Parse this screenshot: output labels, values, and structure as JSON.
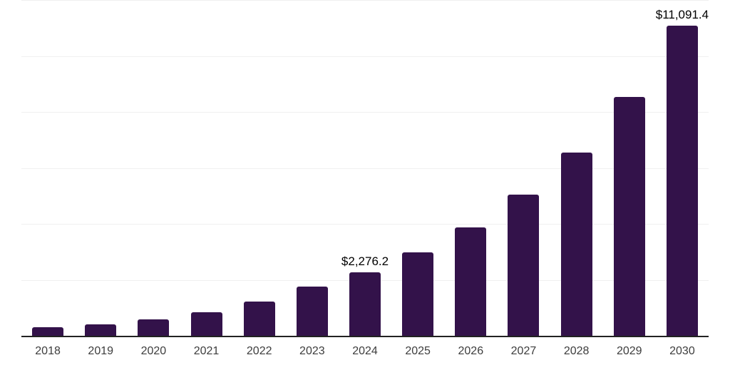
{
  "chart_data": {
    "type": "bar",
    "title": "",
    "xlabel": "",
    "ylabel": "",
    "categories": [
      "2018",
      "2019",
      "2020",
      "2021",
      "2022",
      "2023",
      "2024",
      "2025",
      "2026",
      "2027",
      "2028",
      "2029",
      "2030"
    ],
    "values": [
      295,
      420,
      585,
      850,
      1220,
      1760,
      2276.2,
      2970,
      3875,
      5055,
      6555,
      8530,
      11091.4
    ],
    "ylim": [
      0,
      12000
    ],
    "grid_step": 2000,
    "grid": true,
    "legend": false,
    "annotations": [
      {
        "category": "2024",
        "text": "$2,276.2"
      },
      {
        "category": "2030",
        "text": "$11,091.4"
      }
    ],
    "colors": {
      "bar": "#33124A",
      "gridline": "#f0f0f0",
      "axis_line": "#222222",
      "tick_label": "#3d3d3d",
      "data_label": "#000000",
      "background": "#ffffff"
    }
  }
}
